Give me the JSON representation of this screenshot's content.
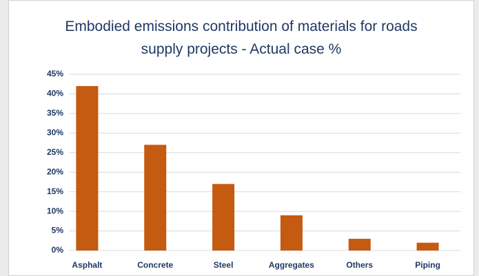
{
  "chart_data": {
    "type": "bar",
    "title": "Embodied emissions contribution of materials for roads supply projects - Actual case %",
    "categories": [
      "Asphalt",
      "Concrete",
      "Steel",
      "Aggregates",
      "Others",
      "Piping"
    ],
    "values": [
      42,
      27,
      17,
      9,
      3,
      2
    ],
    "color": "#c55a11",
    "ylim": [
      0,
      45
    ],
    "yticks": [
      {
        "value": 0,
        "label": "0%"
      },
      {
        "value": 5,
        "label": "5%"
      },
      {
        "value": 10,
        "label": "10%"
      },
      {
        "value": 15,
        "label": "15%"
      },
      {
        "value": 20,
        "label": "20%"
      },
      {
        "value": 25,
        "label": "25%"
      },
      {
        "value": 30,
        "label": "30%"
      },
      {
        "value": 35,
        "label": "35%"
      },
      {
        "value": 40,
        "label": "40%"
      },
      {
        "value": 45,
        "label": "45%"
      }
    ],
    "grid": true
  }
}
